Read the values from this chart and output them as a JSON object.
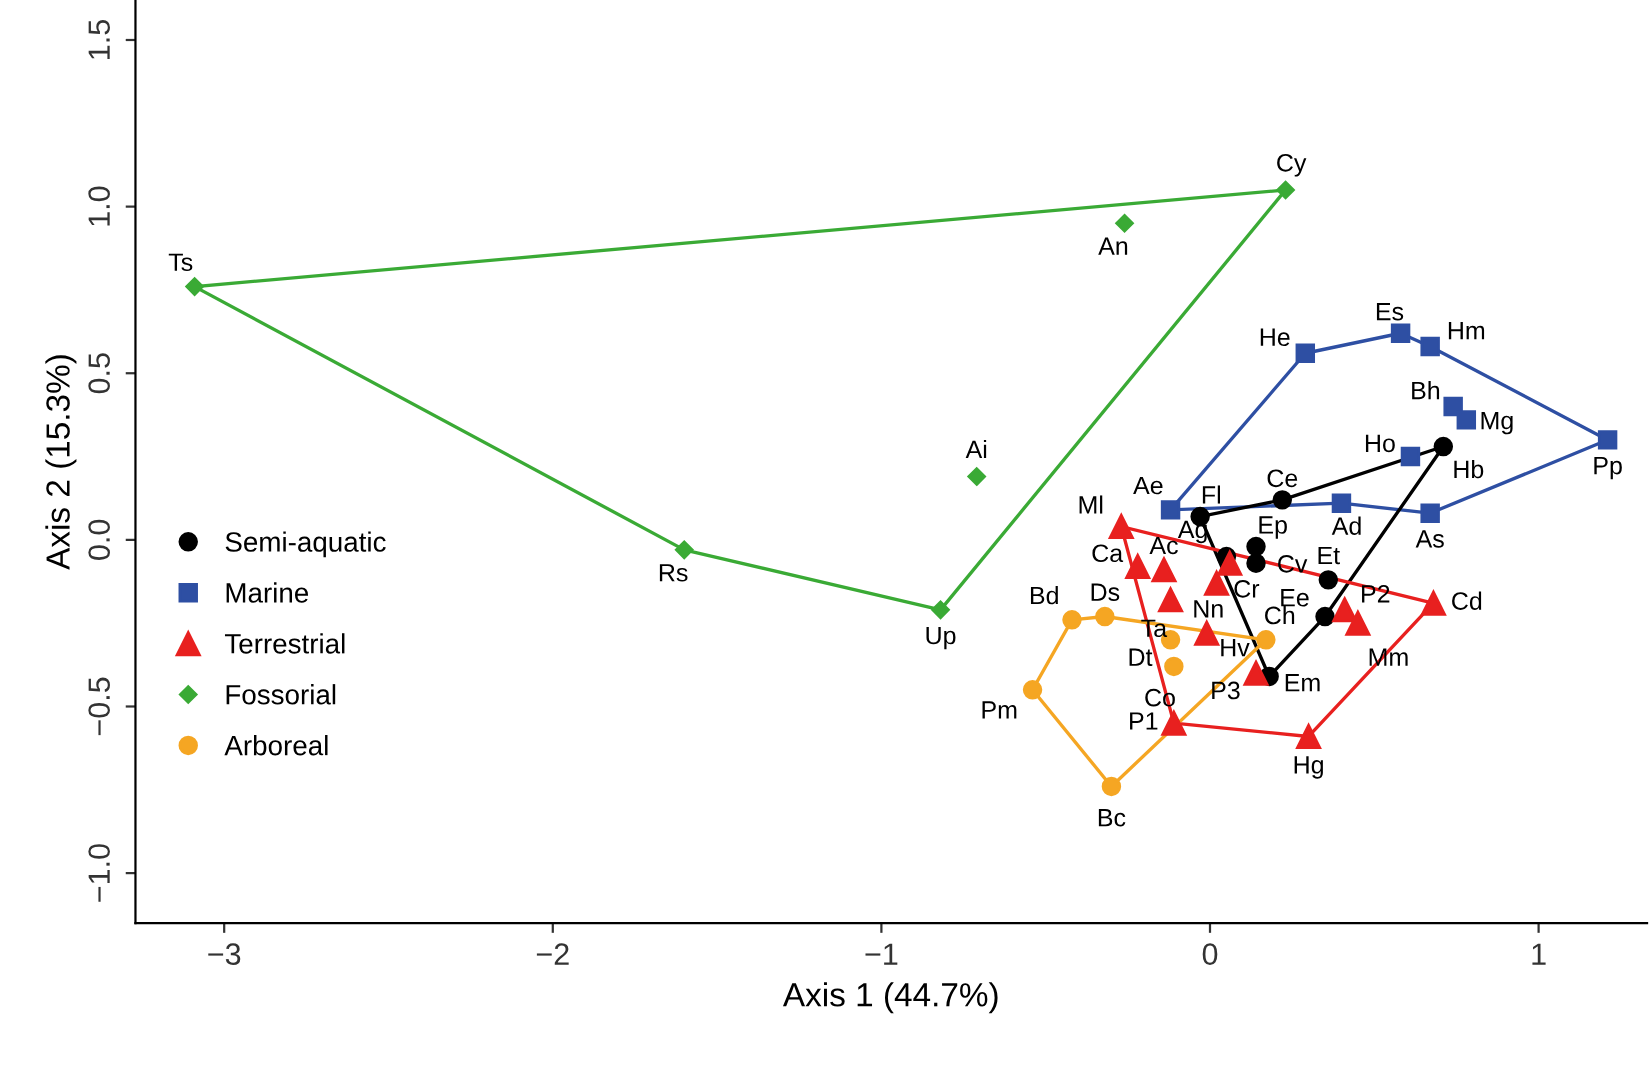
{
  "chart_data": {
    "type": "scatter",
    "xlabel": "Axis 1 (44.7%)",
    "ylabel": "Axis 2 (15.3%)",
    "xlim": [
      -3.27,
      1.33
    ],
    "ylim": [
      -1.15,
      1.62
    ],
    "xticks": [
      {
        "value": -3,
        "label": "−3"
      },
      {
        "value": -2,
        "label": "−2"
      },
      {
        "value": -1,
        "label": "−1"
      },
      0,
      1
    ],
    "yticks": [
      {
        "value": -1.0,
        "label": "−1.0"
      },
      {
        "value": -0.5,
        "label": "−0.5"
      },
      {
        "value": 0.0,
        "label": "0.0"
      },
      {
        "value": 0.5,
        "label": "0.5"
      },
      {
        "value": 1.0,
        "label": "1.0"
      },
      {
        "value": 1.5,
        "label": "1.5"
      }
    ],
    "grid": false,
    "legend": "left",
    "series": [
      {
        "type": "line",
        "color": "#3aaa35",
        "marker": "none",
        "x": [
          -3.09,
          0.23
        ],
        "values": [
          0.76,
          1.05
        ]
      },
      {
        "type": "line",
        "color": "#3aaa35",
        "marker": "none",
        "x": [
          -3.09,
          -1.6,
          -0.82,
          0.23
        ],
        "values": [
          0.76,
          -0.03,
          -0.21,
          1.05
        ]
      },
      {
        "type": "line",
        "color": "#2e4fa3",
        "marker": "none",
        "x": [
          -0.12,
          0.29,
          0.58,
          0.67,
          1.21
        ],
        "values": [
          0.09,
          0.56,
          0.62,
          0.58,
          0.3
        ]
      },
      {
        "type": "line",
        "color": "#2e4fa3",
        "marker": "none",
        "x": [
          -0.12,
          0.4,
          0.67,
          1.21
        ],
        "values": [
          0.09,
          0.11,
          0.08,
          0.3
        ]
      },
      {
        "type": "line",
        "color": "#000000",
        "marker": "none",
        "x": [
          -0.03,
          0.22,
          0.71
        ],
        "values": [
          0.07,
          0.12,
          0.28
        ]
      },
      {
        "type": "line",
        "color": "#000000",
        "marker": "none",
        "x": [
          -0.03,
          0.18,
          0.35,
          0.71
        ],
        "values": [
          0.07,
          -0.41,
          -0.23,
          0.28
        ]
      },
      {
        "type": "line",
        "color": "#e8201f",
        "marker": "none",
        "x": [
          -0.27,
          0.68
        ],
        "values": [
          0.04,
          -0.19
        ]
      },
      {
        "type": "line",
        "color": "#e8201f",
        "marker": "none",
        "x": [
          -0.27,
          -0.11,
          0.3,
          0.68
        ],
        "values": [
          0.04,
          -0.55,
          -0.59,
          -0.19
        ]
      },
      {
        "type": "line",
        "color": "#f5a623",
        "marker": "none",
        "x": [
          -0.54,
          -0.42,
          -0.32,
          0.17
        ],
        "values": [
          -0.45,
          -0.24,
          -0.23,
          -0.3
        ]
      },
      {
        "type": "line",
        "color": "#f5a623",
        "marker": "none",
        "x": [
          -0.54,
          -0.3,
          0.17
        ],
        "values": [
          -0.45,
          -0.74,
          -0.3
        ]
      },
      {
        "name": "Semi-aquatic",
        "color": "#000000",
        "marker": "circle",
        "x": [
          -0.03,
          0.22,
          0.71,
          0.14,
          0.14,
          0.05,
          0.36,
          0.35,
          0.18
        ],
        "values": [
          0.07,
          0.12,
          0.28,
          -0.02,
          -0.07,
          -0.05,
          -0.12,
          -0.23,
          -0.41
        ]
      },
      {
        "name": "Marine",
        "color": "#2e4fa3",
        "marker": "square",
        "x": [
          0.29,
          0.58,
          0.67,
          0.74,
          0.78,
          1.21,
          0.61,
          0.4,
          0.67,
          -0.12
        ],
        "values": [
          0.56,
          0.62,
          0.58,
          0.4,
          0.36,
          0.3,
          0.25,
          0.11,
          0.08,
          0.09
        ]
      },
      {
        "name": "Terrestrial",
        "color": "#e8201f",
        "marker": "triangle",
        "x": [
          -0.27,
          -0.22,
          -0.14,
          -0.12,
          0.02,
          0.06,
          -0.01,
          0.14,
          0.41,
          0.45,
          0.68,
          0.3,
          -0.11
        ],
        "values": [
          0.04,
          -0.08,
          -0.09,
          -0.18,
          -0.13,
          -0.07,
          -0.28,
          -0.4,
          -0.21,
          -0.25,
          -0.19,
          -0.59,
          -0.55
        ]
      },
      {
        "name": "Fossorial",
        "color": "#3aaa35",
        "marker": "diamond",
        "x": [
          -3.09,
          -1.6,
          -0.82,
          -0.71,
          -0.26,
          0.23
        ],
        "values": [
          0.76,
          -0.03,
          -0.21,
          0.19,
          0.95,
          1.05
        ]
      },
      {
        "name": "Arboreal",
        "color": "#f5a623",
        "marker": "circle",
        "x": [
          -0.42,
          -0.32,
          0.17,
          -0.12,
          -0.11,
          -0.54,
          -0.3
        ],
        "values": [
          -0.24,
          -0.23,
          -0.3,
          -0.3,
          -0.38,
          -0.45,
          -0.74
        ]
      }
    ],
    "annotations": [
      {
        "text": "Ts",
        "x": -3.09,
        "y": 0.76
      },
      {
        "text": "Rs",
        "x": -1.6,
        "y": -0.03
      },
      {
        "text": "Up",
        "x": -0.82,
        "y": -0.21
      },
      {
        "text": "Ai",
        "x": -0.71,
        "y": 0.19
      },
      {
        "text": "An",
        "x": -0.26,
        "y": 0.95
      },
      {
        "text": "Cy",
        "x": 0.23,
        "y": 1.05
      },
      {
        "text": "He",
        "x": 0.29,
        "y": 0.56
      },
      {
        "text": "Es",
        "x": 0.58,
        "y": 0.62
      },
      {
        "text": "Hm",
        "x": 0.67,
        "y": 0.58
      },
      {
        "text": "Bh",
        "x": 0.74,
        "y": 0.4
      },
      {
        "text": "Mg",
        "x": 0.78,
        "y": 0.36
      },
      {
        "text": "Pp",
        "x": 1.21,
        "y": 0.3
      },
      {
        "text": "Ho",
        "x": 0.61,
        "y": 0.25
      },
      {
        "text": "Ad",
        "x": 0.4,
        "y": 0.11
      },
      {
        "text": "As",
        "x": 0.67,
        "y": 0.08
      },
      {
        "text": "Ae",
        "x": -0.12,
        "y": 0.09
      },
      {
        "text": "Fl",
        "x": -0.03,
        "y": 0.07
      },
      {
        "text": "Ce",
        "x": 0.22,
        "y": 0.12
      },
      {
        "text": "Hb",
        "x": 0.71,
        "y": 0.28
      },
      {
        "text": "Ep",
        "x": 0.14,
        "y": -0.02
      },
      {
        "text": "Cv",
        "x": 0.14,
        "y": -0.07
      },
      {
        "text": "Ag",
        "x": 0.05,
        "y": -0.05
      },
      {
        "text": "Et",
        "x": 0.36,
        "y": -0.12
      },
      {
        "text": "Ee",
        "x": 0.35,
        "y": -0.23
      },
      {
        "text": "Em",
        "x": 0.18,
        "y": -0.41
      },
      {
        "text": "Ml",
        "x": -0.27,
        "y": 0.04
      },
      {
        "text": "Ca",
        "x": -0.22,
        "y": -0.08
      },
      {
        "text": "Ac",
        "x": -0.14,
        "y": -0.09
      },
      {
        "text": "Ta",
        "x": -0.12,
        "y": -0.18
      },
      {
        "text": "Nn",
        "x": 0.02,
        "y": -0.13
      },
      {
        "text": "Cr",
        "x": 0.06,
        "y": -0.07
      },
      {
        "text": "Hv",
        "x": -0.01,
        "y": -0.28
      },
      {
        "text": "P3",
        "x": 0.14,
        "y": -0.4
      },
      {
        "text": "P2",
        "x": 0.41,
        "y": -0.21
      },
      {
        "text": "Mm",
        "x": 0.45,
        "y": -0.25
      },
      {
        "text": "Cd",
        "x": 0.68,
        "y": -0.19
      },
      {
        "text": "Hg",
        "x": 0.3,
        "y": -0.59
      },
      {
        "text": "P1",
        "x": -0.11,
        "y": -0.55
      },
      {
        "text": "Bd",
        "x": -0.42,
        "y": -0.24
      },
      {
        "text": "Ds",
        "x": -0.32,
        "y": -0.23
      },
      {
        "text": "Ch",
        "x": 0.17,
        "y": -0.3
      },
      {
        "text": "Dt",
        "x": -0.12,
        "y": -0.3
      },
      {
        "text": "Co",
        "x": -0.11,
        "y": -0.38
      },
      {
        "text": "Pm",
        "x": -0.54,
        "y": -0.45
      },
      {
        "text": "Bc",
        "x": -0.3,
        "y": -0.74
      }
    ]
  }
}
